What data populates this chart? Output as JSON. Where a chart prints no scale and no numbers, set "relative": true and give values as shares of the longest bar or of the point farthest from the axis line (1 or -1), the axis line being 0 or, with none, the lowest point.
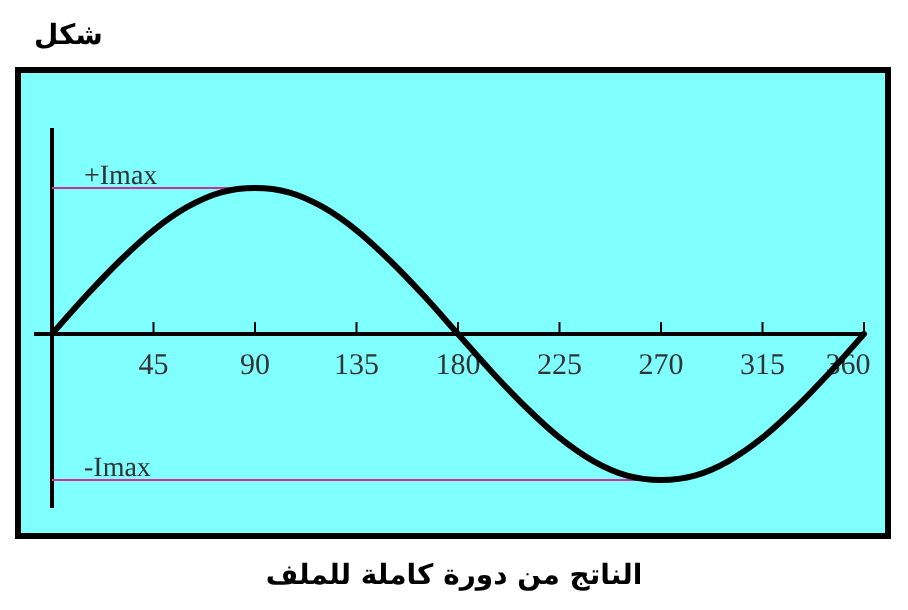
{
  "chart_data": {
    "type": "line",
    "title": "شكل",
    "annotations": [
      "الناتج من دورة كاملة للملف"
    ],
    "relative": true,
    "tick_labels": "x",
    "x": [
      0,
      15,
      30,
      45,
      60,
      75,
      90,
      105,
      120,
      135,
      150,
      165,
      180,
      195,
      210,
      225,
      240,
      255,
      270,
      285,
      300,
      315,
      330,
      345,
      360
    ],
    "xlim": [
      0,
      360
    ],
    "xticks": [
      45,
      90,
      135,
      180,
      225,
      270,
      315,
      360
    ],
    "series": [
      {
        "color": "#000000",
        "values": [
          0,
          0.26,
          0.5,
          0.71,
          0.87,
          0.97,
          1,
          0.97,
          0.87,
          0.71,
          0.5,
          0.26,
          0,
          -0.26,
          -0.5,
          -0.71,
          -0.87,
          -0.97,
          -1,
          -0.97,
          -0.87,
          -0.71,
          -0.5,
          -0.26,
          0
        ]
      }
    ],
    "ref_lines": [
      {
        "axis": "y",
        "value": 1,
        "label": "+Imax",
        "color": "#cc3399"
      },
      {
        "axis": "y",
        "value": -1,
        "label": "-Imax",
        "color": "#cc3399"
      }
    ]
  }
}
